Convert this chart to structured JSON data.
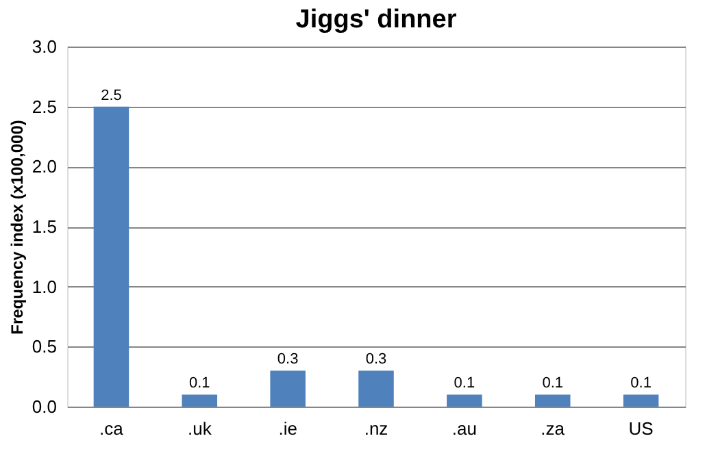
{
  "chart_data": {
    "type": "bar",
    "title": "Jiggs' dinner",
    "ylabel": "Frequency index (x100,000)",
    "categories": [
      ".ca",
      ".uk",
      ".ie",
      ".nz",
      ".au",
      ".za",
      "US"
    ],
    "values": [
      2.5,
      0.1,
      0.3,
      0.3,
      0.1,
      0.1,
      0.1
    ],
    "color": "#4f81bd",
    "ylim": [
      0,
      3
    ],
    "yticks": [
      {
        "value": 0,
        "label": "0.0"
      },
      {
        "value": 0.5,
        "label": "0.5"
      },
      {
        "value": 1,
        "label": "1.0"
      },
      {
        "value": 1.5,
        "label": "1.5"
      },
      {
        "value": 2,
        "label": "2.0"
      },
      {
        "value": 2.5,
        "label": "2.5"
      },
      {
        "value": 3,
        "label": "3.0"
      }
    ],
    "grid": "y",
    "data_labels": true
  }
}
